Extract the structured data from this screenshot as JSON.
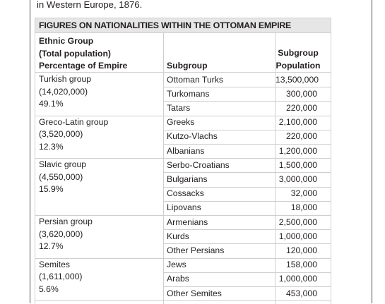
{
  "caption": "in Western Europe, 1876.",
  "table": {
    "title": "FIGURES ON NATIONALITIES WITHIN THE OTTOMAN EMPIRE",
    "headers": {
      "group_lines": [
        "Ethnic Group",
        "(Total population)",
        "Percentage of Empire"
      ],
      "subgroup": "Subgroup",
      "population_lines": [
        "Subgroup",
        "Population"
      ]
    },
    "groups": [
      {
        "name": "Turkish group",
        "total": "(14,020,000)",
        "percent": "49.1%",
        "rows": [
          [
            "Ottoman Turks",
            "13,500,000"
          ],
          [
            "Turkomans",
            "300,000"
          ],
          [
            "Tatars",
            "220,000"
          ]
        ]
      },
      {
        "name": "Greco-Latin group",
        "total": "(3,520,000)",
        "percent": "12.3%",
        "rows": [
          [
            "Greeks",
            "2,100,000"
          ],
          [
            "Kutzo-Vlachs",
            "220,000"
          ],
          [
            "Albanians",
            "1,200,000"
          ]
        ]
      },
      {
        "name": "Slavic group",
        "total": "(4,550,000)",
        "percent": "15.9%",
        "rows": [
          [
            "Serbo-Croatians",
            "1,500,000"
          ],
          [
            "Bulgarians",
            "3,000,000"
          ],
          [
            "Cossacks",
            "32,000"
          ],
          [
            "Lipovans",
            "18,000"
          ]
        ]
      },
      {
        "name": "Persian group",
        "total": "(3,620,000)",
        "percent": "12.7%",
        "rows": [
          [
            "Armenians",
            "2,500,000"
          ],
          [
            "Kurds",
            "1,000,000"
          ],
          [
            "Other Persians",
            "120,000"
          ]
        ]
      },
      {
        "name": "Semites",
        "total": "(1,611,000)",
        "percent": "5.6%",
        "rows": [
          [
            "Jews",
            "158,000"
          ],
          [
            "Arabs",
            "1,000,000"
          ],
          [
            "Other Semites",
            "453,000"
          ]
        ]
      }
    ]
  }
}
